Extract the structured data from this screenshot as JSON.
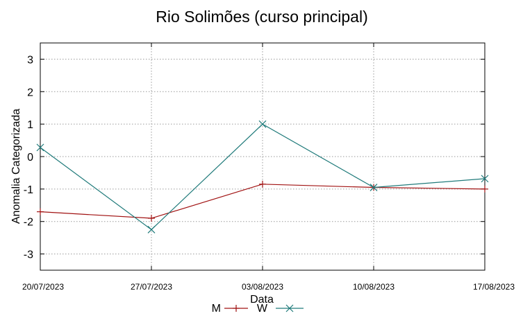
{
  "chart_data": {
    "type": "line",
    "title": "Rio Solimões (curso principal)",
    "xlabel": "Data",
    "ylabel": "Anomalia Categorizada",
    "categories": [
      "20/07/2023",
      "27/07/2023",
      "03/08/2023",
      "10/08/2023",
      "17/08/2023"
    ],
    "ylim": [
      -3.5,
      3.5
    ],
    "yticks": [
      -3,
      -2,
      -1,
      0,
      1,
      2,
      3
    ],
    "grid": true,
    "legend_position": "bottom",
    "series": [
      {
        "name": "M",
        "color": "#a01010",
        "marker": "plus",
        "values": [
          -1.7,
          -1.9,
          -0.85,
          -0.95,
          -1.0
        ]
      },
      {
        "name": "W",
        "color": "#1f7a7a",
        "marker": "cross",
        "values": [
          0.28,
          -2.25,
          1.0,
          -0.95,
          -0.68
        ]
      }
    ]
  }
}
